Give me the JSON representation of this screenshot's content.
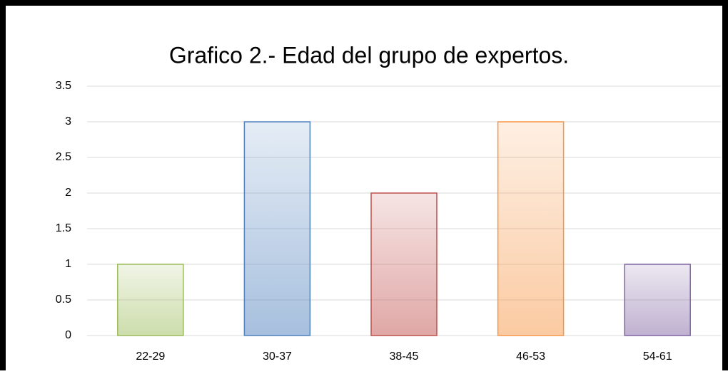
{
  "chart_data": {
    "type": "bar",
    "title": "Grafico 2.- Edad del grupo de expertos.",
    "categories": [
      "22-29",
      "30-37",
      "38-45",
      "46-53",
      "54-61"
    ],
    "values": [
      1,
      3,
      2,
      3,
      1
    ],
    "colors": [
      "#9bbb59",
      "#4f81bd",
      "#c0504d",
      "#f79646",
      "#8064a2"
    ],
    "ylim": [
      0,
      3.5
    ],
    "yticks": [
      0,
      0.5,
      1,
      1.5,
      2,
      2.5,
      3,
      3.5
    ],
    "grid": true
  }
}
